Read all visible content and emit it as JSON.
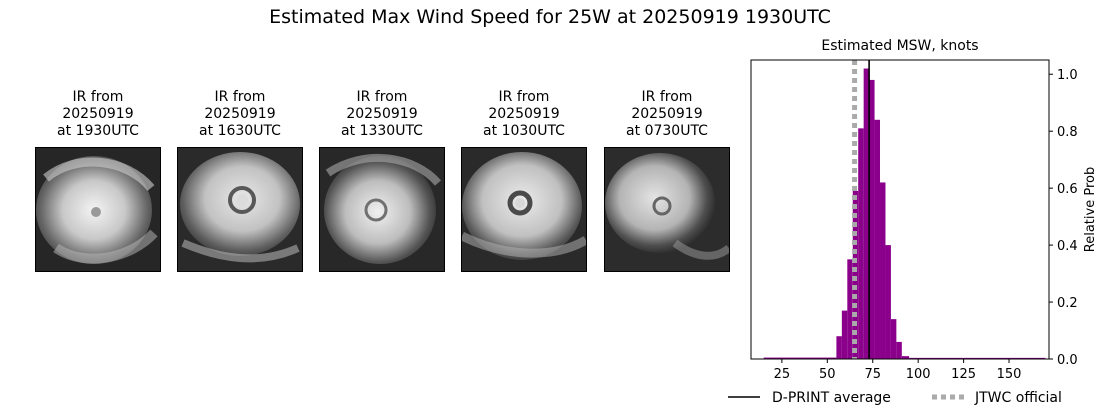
{
  "figure": {
    "title": "Estimated Max Wind Speed for 25W at 20250919 1930UTC"
  },
  "ir_panels": [
    {
      "line1": "IR from",
      "line2": "20250919",
      "line3": "at 1930UTC"
    },
    {
      "line1": "IR from",
      "line2": "20250919",
      "line3": "at 1630UTC"
    },
    {
      "line1": "IR from",
      "line2": "20250919",
      "line3": "at 1330UTC"
    },
    {
      "line1": "IR from",
      "line2": "20250919",
      "line3": "at 1030UTC"
    },
    {
      "line1": "IR from",
      "line2": "20250919",
      "line3": "at 0730UTC"
    }
  ],
  "chart_data": {
    "type": "bar",
    "title": "Estimated MSW, knots",
    "xlabel": "",
    "ylabel": "Relative Prob",
    "xlim": [
      8,
      172
    ],
    "ylim": [
      0,
      1.05
    ],
    "xticks": [
      25,
      50,
      75,
      100,
      125,
      150
    ],
    "yticks": [
      0.0,
      0.2,
      0.4,
      0.6,
      0.8,
      1.0
    ],
    "y_axis_side": "right",
    "bar_color": "#8b008b",
    "bins": [
      {
        "x0": 15,
        "x1": 55,
        "value": 0.005
      },
      {
        "x0": 55,
        "x1": 58,
        "value": 0.08
      },
      {
        "x0": 58,
        "x1": 61,
        "value": 0.17
      },
      {
        "x0": 61,
        "x1": 64,
        "value": 0.35
      },
      {
        "x0": 64,
        "x1": 67,
        "value": 0.59
      },
      {
        "x0": 67,
        "x1": 70,
        "value": 0.81
      },
      {
        "x0": 70,
        "x1": 73,
        "value": 1.02
      },
      {
        "x0": 73,
        "x1": 76,
        "value": 0.98
      },
      {
        "x0": 76,
        "x1": 79,
        "value": 0.84
      },
      {
        "x0": 79,
        "x1": 82,
        "value": 0.62
      },
      {
        "x0": 82,
        "x1": 85,
        "value": 0.4
      },
      {
        "x0": 85,
        "x1": 88,
        "value": 0.14
      },
      {
        "x0": 88,
        "x1": 91,
        "value": 0.06
      },
      {
        "x0": 91,
        "x1": 95,
        "value": 0.01
      },
      {
        "x0": 95,
        "x1": 170,
        "value": 0.004
      }
    ],
    "lines": [
      {
        "name": "D-PRINT average",
        "x": 73,
        "color": "#000000",
        "style": "solid"
      },
      {
        "name": "JTWC official",
        "x": 65,
        "color": "#aaaaaa",
        "style": "dotted"
      }
    ],
    "legend_position": "bottom"
  }
}
